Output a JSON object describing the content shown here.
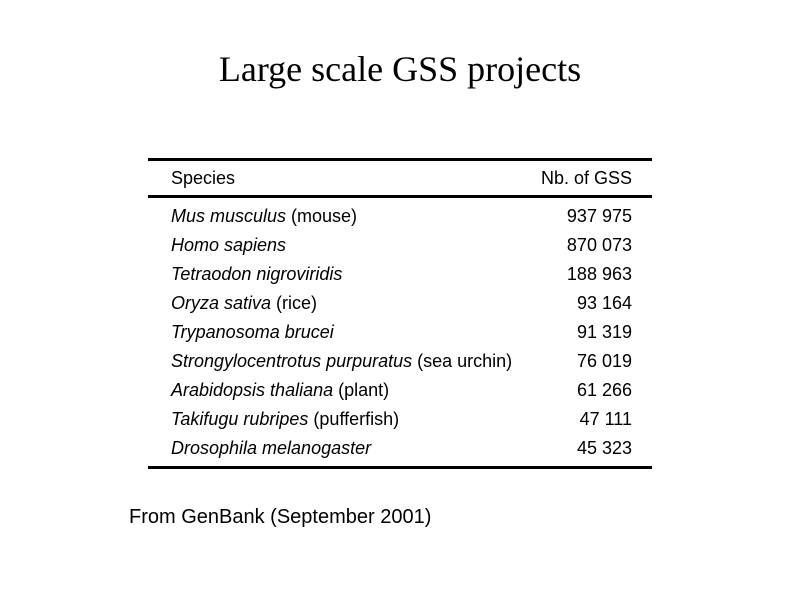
{
  "slide": {
    "title": "Large scale GSS projects",
    "source_note": "From GenBank (September 2001)"
  },
  "table": {
    "headers": {
      "species": "Species",
      "count": "Nb. of GSS"
    },
    "rows": [
      {
        "scientific_name": "Mus musculus",
        "common_name": " (mouse)",
        "count": "937 975"
      },
      {
        "scientific_name": "Homo sapiens",
        "common_name": "",
        "count": "870 073"
      },
      {
        "scientific_name": "Tetraodon nigroviridis",
        "common_name": "",
        "count": "188 963"
      },
      {
        "scientific_name": "Oryza sativa",
        "common_name": " (rice)",
        "count": "93 164"
      },
      {
        "scientific_name": "Trypanosoma brucei",
        "common_name": "",
        "count": "91 319"
      },
      {
        "scientific_name": "Strongylocentrotus purpuratus",
        "common_name": " (sea urchin)",
        "count": "76 019"
      },
      {
        "scientific_name": "Arabidopsis thaliana",
        "common_name": " (plant)",
        "count": "61 266"
      },
      {
        "scientific_name": "Takifugu rubripes",
        "common_name": " (pufferfish)",
        "count": "47 111"
      },
      {
        "scientific_name": "Drosophila melanogaster",
        "common_name": "",
        "count": "45 323"
      }
    ]
  }
}
